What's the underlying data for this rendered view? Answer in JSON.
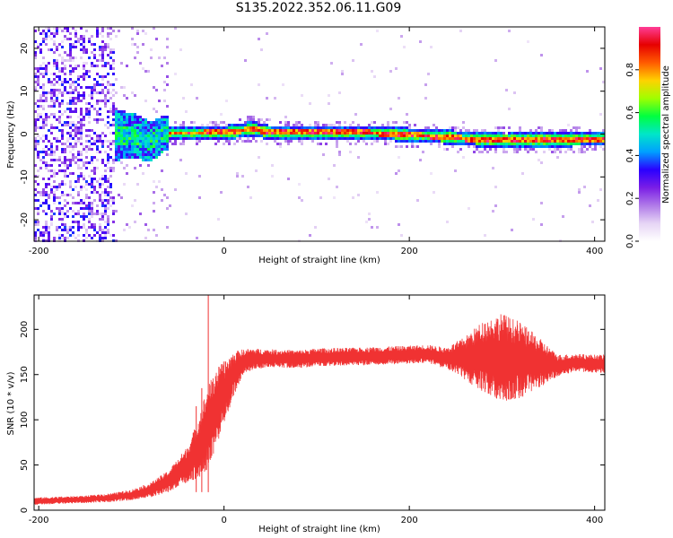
{
  "figure_title": "S135.2022.352.06.11.G09",
  "chart_data": [
    {
      "type": "heatmap",
      "title": "",
      "xlabel": "Height of straight line (km)",
      "ylabel": "Frequency (Hz)",
      "xlim": [
        -205,
        411
      ],
      "ylim": [
        -25,
        25
      ],
      "xticks": [
        -200,
        0,
        200,
        400
      ],
      "yticks": [
        -20,
        -10,
        0,
        10,
        20
      ],
      "colorbar": {
        "label": "Normalized spectral amplitude",
        "range": [
          0,
          1
        ],
        "ticks": [
          0.0,
          0.2,
          0.4,
          0.6,
          0.8
        ],
        "colors": [
          "#ffffff",
          "#e6d5f5",
          "#b07ae8",
          "#7a1ee6",
          "#2a00ff",
          "#00a0ff",
          "#00e6c8",
          "#00ff40",
          "#a0ff00",
          "#ffd200",
          "#ff5a00",
          "#e60000",
          "#ff3c96"
        ]
      },
      "ridge": [
        {
          "x": -130,
          "y": 0.0
        },
        {
          "x": -100,
          "y": 0.0
        },
        {
          "x": -80,
          "y": -1.5
        },
        {
          "x": -65,
          "y": 0.5
        },
        {
          "x": -50,
          "y": 0.5
        },
        {
          "x": 0,
          "y": 0.6
        },
        {
          "x": 30,
          "y": 1.5
        },
        {
          "x": 50,
          "y": 0.6
        },
        {
          "x": 100,
          "y": 0.6
        },
        {
          "x": 150,
          "y": 0.6
        },
        {
          "x": 180,
          "y": 0.4
        },
        {
          "x": 200,
          "y": 0.0
        },
        {
          "x": 230,
          "y": -0.2
        },
        {
          "x": 260,
          "y": -0.8
        },
        {
          "x": 300,
          "y": -1.2
        },
        {
          "x": 350,
          "y": -1.0
        },
        {
          "x": 411,
          "y": -0.8
        }
      ]
    },
    {
      "type": "line",
      "title": "",
      "xlabel": "Height of straight line (km)",
      "ylabel": "SNR (10 * v/v)",
      "xlim": [
        -205,
        411
      ],
      "ylim": [
        0,
        238
      ],
      "xticks": [
        -200,
        0,
        200,
        400
      ],
      "yticks": [
        0,
        50,
        100,
        150,
        200
      ],
      "color": "#f03232",
      "series": [
        {
          "x": [
            -205,
            -180,
            -150,
            -120,
            -100,
            -80,
            -60,
            -40,
            -30,
            -20,
            -10,
            0,
            10,
            20,
            30,
            50,
            80,
            100,
            150,
            200,
            220,
            240,
            260,
            280,
            300,
            320,
            340,
            360,
            380,
            400,
            411
          ],
          "y": [
            10,
            11,
            12,
            14,
            17,
            22,
            32,
            50,
            65,
            85,
            110,
            130,
            150,
            163,
            167,
            168,
            167,
            169,
            170,
            172,
            173,
            168,
            168,
            170,
            168,
            166,
            163,
            160,
            163,
            162,
            162
          ],
          "spread": [
            4,
            4,
            4,
            5,
            6,
            8,
            12,
            20,
            30,
            45,
            45,
            35,
            25,
            15,
            12,
            10,
            10,
            10,
            10,
            10,
            10,
            12,
            24,
            40,
            50,
            42,
            28,
            12,
            10,
            10,
            10
          ]
        }
      ],
      "spikes": [
        {
          "x": -17,
          "y": 238
        },
        {
          "x": -30,
          "y": 115
        },
        {
          "x": -24,
          "y": 135
        }
      ]
    }
  ]
}
